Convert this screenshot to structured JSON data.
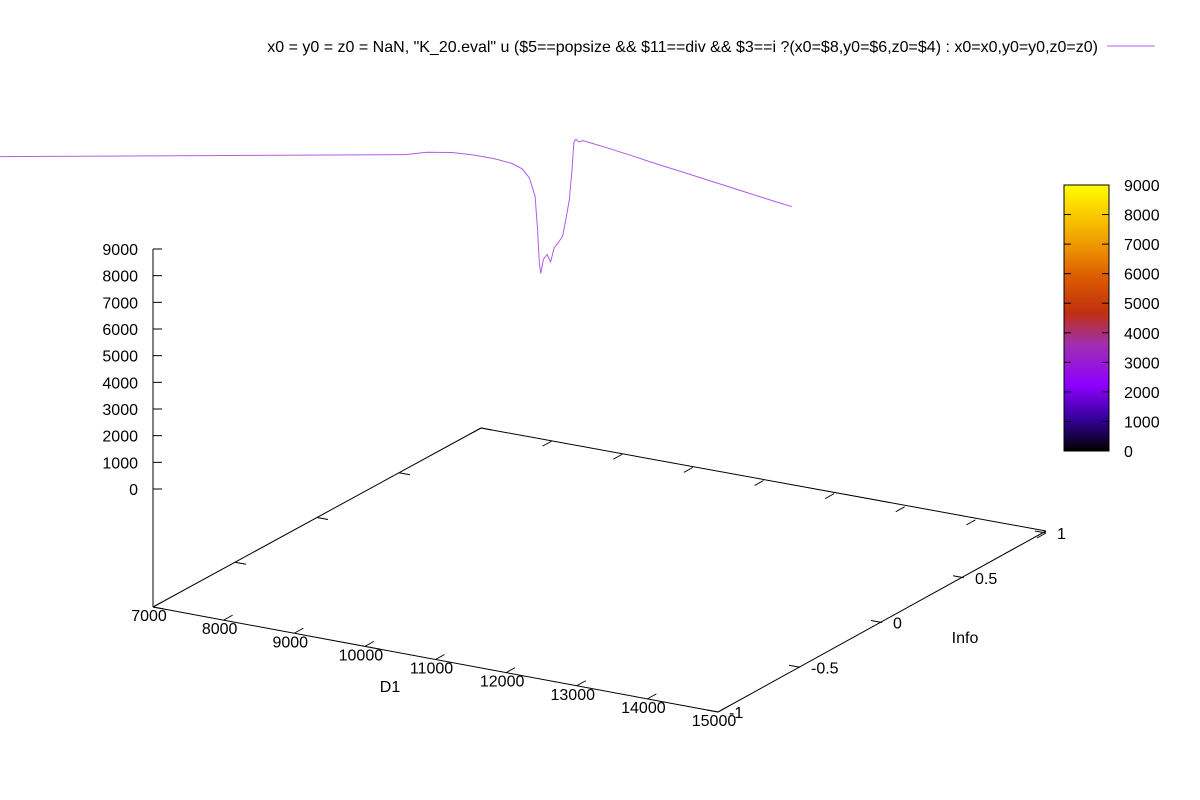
{
  "chart_data": {
    "type": "line",
    "projection": "3d",
    "legend": {
      "label": "x0 = y0 = z0 = NaN, \"K_20.eval\" u ($5==popsize && $11==div && $3==i ?(x0=$8,y0=$6,z0=$4) : x0=x0,y0=y0,z0=z0)",
      "placement": "top-right",
      "color": "#b05ce6"
    },
    "xlabel": "D1",
    "ylabel": "Info",
    "xlim": [
      7000,
      15000
    ],
    "ylim": [
      -1,
      1
    ],
    "zlim": [
      0,
      9000
    ],
    "x_ticks": [
      "7000",
      "8000",
      "9000",
      "10000",
      "11000",
      "12000",
      "13000",
      "14000",
      "15000"
    ],
    "y_ticks": [
      "-1",
      "-0.5",
      "0",
      "0.5",
      "1"
    ],
    "z_ticks": [
      "0",
      "1000",
      "2000",
      "3000",
      "4000",
      "5000",
      "6000",
      "7000",
      "8000",
      "9000"
    ],
    "colorbar": {
      "range": [
        0,
        9000
      ],
      "ticks": [
        "0",
        "1000",
        "2000",
        "3000",
        "4000",
        "5000",
        "6000",
        "7000",
        "8000",
        "9000"
      ],
      "palette": [
        "#000000",
        "#35009a",
        "#8f00ff",
        "#a02fb0",
        "#c0300f",
        "#dc5a00",
        "#ef9a00",
        "#fbd000",
        "#ffff00"
      ]
    },
    "grid": false,
    "series": [
      {
        "color": "#b05ce6",
        "points": [
          {
            "x": 7045,
            "y": 0.52,
            "z": 7460
          },
          {
            "x": 7350,
            "y": 0.52,
            "z": 7700
          },
          {
            "x": 7700,
            "y": 0.52,
            "z": 7860
          },
          {
            "x": 8000,
            "y": 0.52,
            "z": 7920
          },
          {
            "x": 8300,
            "y": 0.52,
            "z": 7930
          },
          {
            "x": 8550,
            "y": 0.52,
            "z": 7870
          },
          {
            "x": 8700,
            "y": 0.52,
            "z": 7740
          },
          {
            "x": 8800,
            "y": 0.52,
            "z": 7450
          },
          {
            "x": 8880,
            "y": 0.52,
            "z": 6800
          },
          {
            "x": 8915,
            "y": 0.52,
            "z": 5600
          },
          {
            "x": 8940,
            "y": 0.52,
            "z": 4360
          },
          {
            "x": 8960,
            "y": 0.52,
            "z": 3950
          },
          {
            "x": 9000,
            "y": 0.52,
            "z": 4500
          },
          {
            "x": 9050,
            "y": 0.52,
            "z": 4700
          },
          {
            "x": 9100,
            "y": 0.52,
            "z": 4450
          },
          {
            "x": 9150,
            "y": 0.52,
            "z": 5000
          },
          {
            "x": 9210,
            "y": 0.52,
            "z": 5230
          },
          {
            "x": 9270,
            "y": 0.52,
            "z": 5500
          },
          {
            "x": 9320,
            "y": 0.52,
            "z": 6200
          },
          {
            "x": 9365,
            "y": 0.52,
            "z": 6900
          },
          {
            "x": 9405,
            "y": 0.52,
            "z": 8100
          },
          {
            "x": 9430,
            "y": 0.52,
            "z": 9110
          },
          {
            "x": 9460,
            "y": 0.52,
            "z": 9220
          },
          {
            "x": 9500,
            "y": 0.52,
            "z": 9140
          },
          {
            "x": 9560,
            "y": 0.52,
            "z": 9220
          },
          {
            "x": 9700,
            "y": 0.52,
            "z": 9180
          },
          {
            "x": 9900,
            "y": 0.52,
            "z": 9120
          },
          {
            "x": 10100,
            "y": 0.52,
            "z": 9050
          },
          {
            "x": 10300,
            "y": 0.52,
            "z": 8980
          },
          {
            "x": 10500,
            "y": 0.52,
            "z": 8900
          },
          {
            "x": 10700,
            "y": 0.52,
            "z": 8830
          },
          {
            "x": 10900,
            "y": 0.52,
            "z": 8760
          },
          {
            "x": 11100,
            "y": 0.52,
            "z": 8690
          },
          {
            "x": 11300,
            "y": 0.52,
            "z": 8620
          },
          {
            "x": 11500,
            "y": 0.52,
            "z": 8550
          },
          {
            "x": 11700,
            "y": 0.52,
            "z": 8480
          },
          {
            "x": 11900,
            "y": 0.52,
            "z": 8410
          },
          {
            "x": 12100,
            "y": 0.52,
            "z": 8340
          },
          {
            "x": 12300,
            "y": 0.52,
            "z": 8270
          },
          {
            "x": 12520,
            "y": 0.52,
            "z": 8200
          }
        ]
      }
    ]
  }
}
